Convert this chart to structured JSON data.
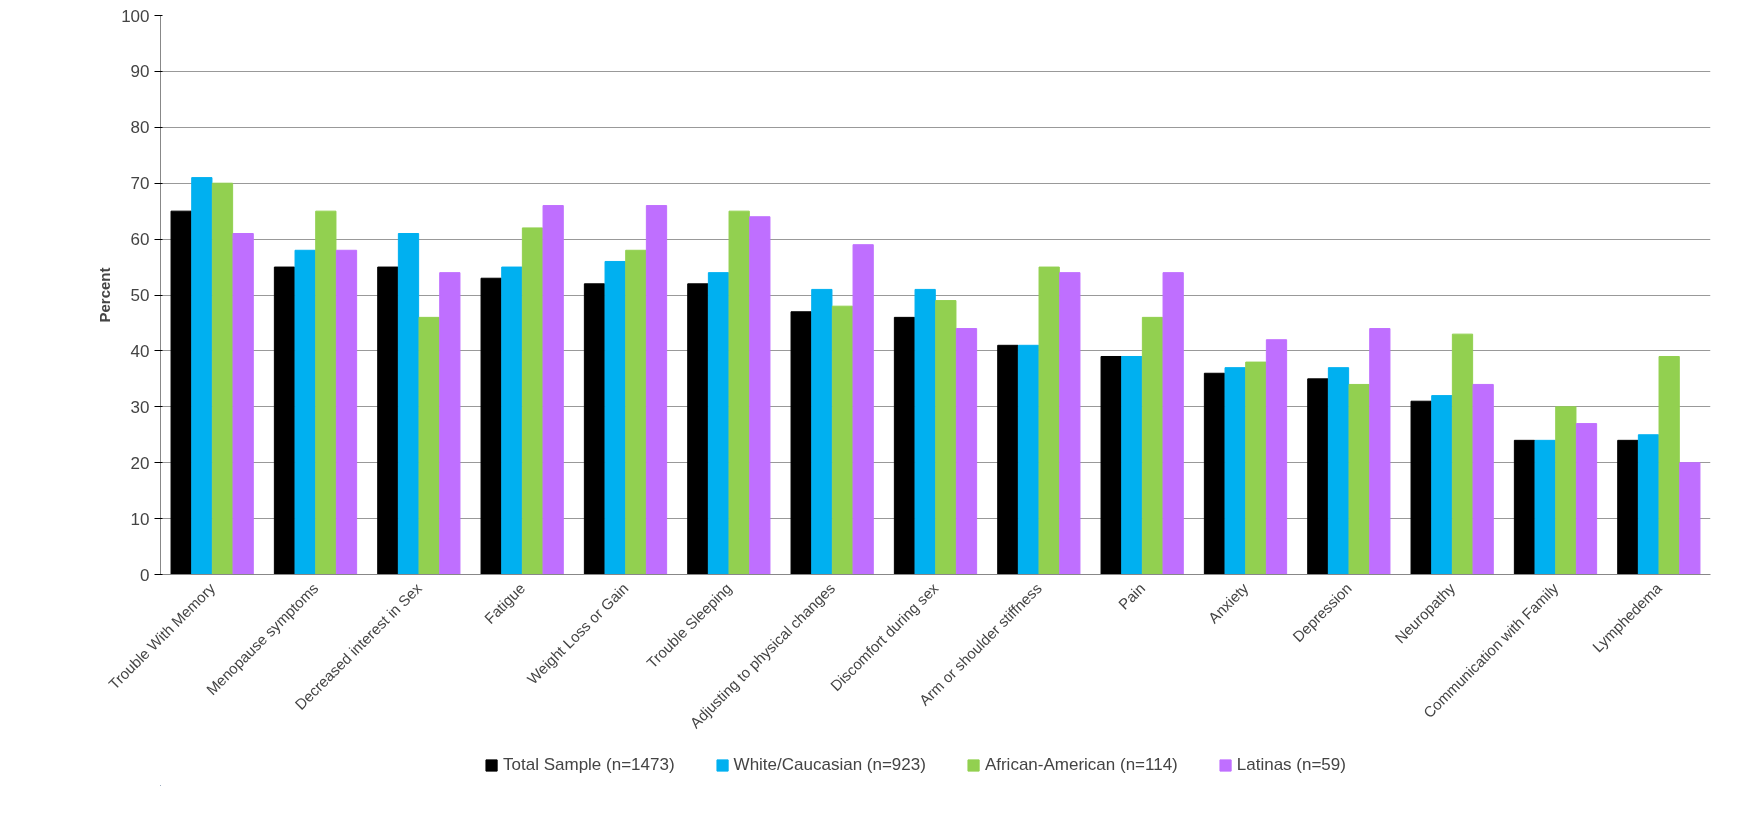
{
  "chart_data": {
    "type": "bar",
    "ylabel": "Percent",
    "categories": [
      "Trouble With Memory",
      "Menopause symptoms",
      "Decreased interest in Sex",
      "Fatigue",
      "Weight Loss or Gain",
      "Trouble Sleeping",
      "Adjusting to physical changes",
      "Discomfort during sex",
      "Arm or shoulder stiffness",
      "Pain",
      "Anxiety",
      "Depression",
      "Neuropathy",
      "Communication with Family",
      "Lymphedema"
    ],
    "series": [
      {
        "name": "Total Sample (n=1473)",
        "color": "#000000",
        "values": [
          65,
          55,
          55,
          53,
          52,
          52,
          47,
          46,
          41,
          39,
          36,
          35,
          31,
          24,
          24
        ]
      },
      {
        "name": "White/Caucasian (n=923)",
        "color": "#00b0f0",
        "values": [
          71,
          58,
          61,
          55,
          56,
          54,
          51,
          51,
          41,
          39,
          37,
          37,
          32,
          24,
          25
        ]
      },
      {
        "name": "African-American (n=114)",
        "color": "#92d050",
        "values": [
          70,
          65,
          46,
          62,
          58,
          65,
          48,
          49,
          55,
          46,
          38,
          34,
          43,
          30,
          39
        ]
      },
      {
        "name": "Latinas (n=59)",
        "color": "#bf6fff",
        "values": [
          61,
          58,
          54,
          66,
          66,
          64,
          59,
          44,
          54,
          54,
          42,
          44,
          34,
          27,
          20
        ]
      }
    ],
    "ylim": [
      0,
      100
    ],
    "yticks": [
      0,
      10,
      20,
      30,
      40,
      50,
      60,
      70,
      80,
      90,
      100
    ],
    "grid": "y",
    "legend": "bottom"
  }
}
